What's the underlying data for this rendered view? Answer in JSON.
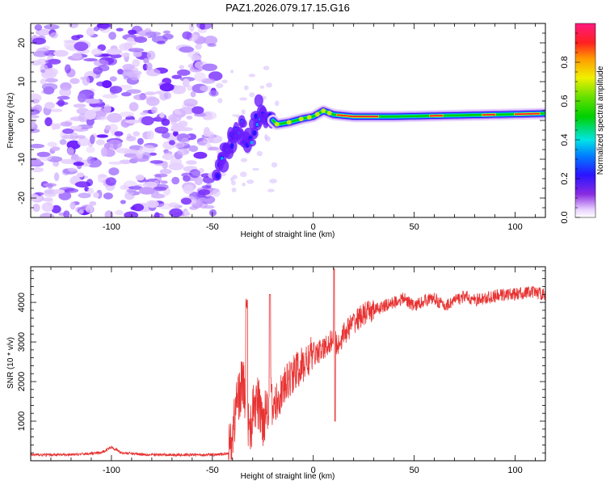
{
  "colors": {
    "snr_line": "#e83333",
    "frame": "#000000",
    "background": "#ffffff"
  },
  "chart_data": [
    {
      "type": "heatmap",
      "title": "PAZ1.2026.079.17.15.G16",
      "xlabel": "Height of straight line (km)",
      "ylabel": "Frequency (Hz)",
      "xlim": [
        -140,
        115
      ],
      "ylim": [
        -25,
        25
      ],
      "xticks": [
        -100,
        -50,
        0,
        50,
        100
      ],
      "yticks": [
        -20,
        -10,
        0,
        10,
        20
      ],
      "colorbar": {
        "label": "Normalized spectral amplitude",
        "range": [
          0,
          1
        ],
        "ticks": [
          "0.0",
          "0.2",
          "0.4",
          "0.6",
          "0.8"
        ],
        "colormap": "rainbow (purple to magenta-red)"
      },
      "ridge": {
        "description": "dominant frequency track vs height",
        "points": [
          {
            "x": -48,
            "y": -13
          },
          {
            "x": -44,
            "y": -9
          },
          {
            "x": -40,
            "y": -5
          },
          {
            "x": -36,
            "y": -2
          },
          {
            "x": -32,
            "y": -5
          },
          {
            "x": -29,
            "y": -2
          },
          {
            "x": -27,
            "y": 3
          },
          {
            "x": -22,
            "y": 1
          },
          {
            "x": -18,
            "y": -1
          },
          {
            "x": -12,
            "y": -0.5
          },
          {
            "x": -5,
            "y": 0.5
          },
          {
            "x": 0,
            "y": 1
          },
          {
            "x": 5,
            "y": 2.5
          },
          {
            "x": 10,
            "y": 1.5
          },
          {
            "x": 20,
            "y": 1
          },
          {
            "x": 40,
            "y": 1
          },
          {
            "x": 60,
            "y": 1.2
          },
          {
            "x": 80,
            "y": 1.4
          },
          {
            "x": 100,
            "y": 1.6
          },
          {
            "x": 115,
            "y": 1.8
          }
        ]
      }
    },
    {
      "type": "line",
      "xlabel": "Height of straight line (km)",
      "ylabel": "SNR (10 * v/v)",
      "xlim": [
        -140,
        115
      ],
      "ylim": [
        0,
        4900
      ],
      "xticks": [
        -100,
        -50,
        0,
        50,
        100
      ],
      "yticks": [
        1000,
        2000,
        3000,
        4000
      ],
      "series": [
        {
          "name": "SNR",
          "x": [
            -140,
            -120,
            -105,
            -100,
            -95,
            -80,
            -60,
            -50,
            -45,
            -42,
            -40,
            -38,
            -35,
            -33,
            -31,
            -29,
            -27,
            -25,
            -22,
            -20,
            -15,
            -10,
            -5,
            0,
            5,
            8,
            10,
            12,
            15,
            20,
            25,
            30,
            35,
            40,
            45,
            50,
            55,
            60,
            65,
            70,
            75,
            80,
            85,
            90,
            95,
            100,
            105,
            110,
            115
          ],
          "y": [
            150,
            150,
            200,
            350,
            200,
            150,
            150,
            150,
            160,
            200,
            600,
            1500,
            2000,
            1200,
            800,
            1500,
            1400,
            1000,
            1600,
            1300,
            1800,
            2200,
            2400,
            2700,
            2800,
            3000,
            3100,
            2900,
            3200,
            3500,
            3700,
            3800,
            3900,
            4000,
            4100,
            3900,
            4050,
            4100,
            3900,
            4050,
            4150,
            4050,
            4100,
            4150,
            4200,
            4200,
            4250,
            4250,
            4200
          ]
        }
      ]
    }
  ]
}
